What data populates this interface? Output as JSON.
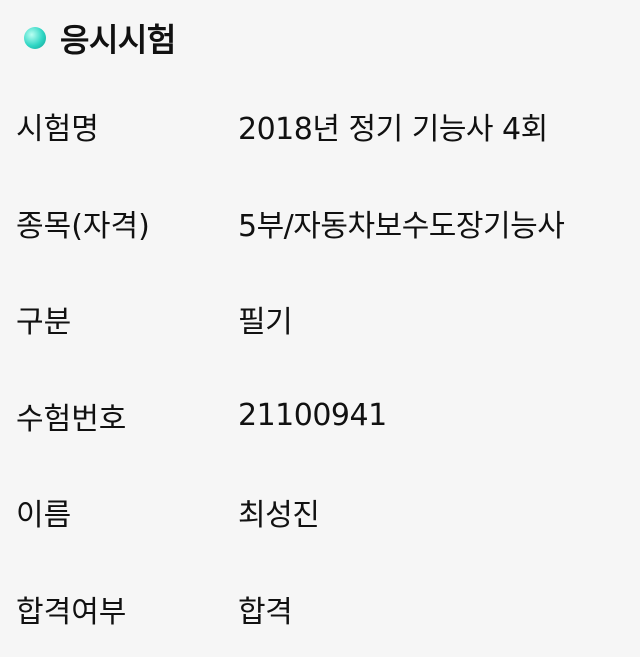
{
  "section": {
    "title": "응시시험",
    "bullet_color": "#2fd6c4"
  },
  "rows": [
    {
      "label": "시험명",
      "value": "2018년 정기 기능사 4회"
    },
    {
      "label": "종목(자격)",
      "value": "5부/자동차보수도장기능사"
    },
    {
      "label": "구분",
      "value": "필기"
    },
    {
      "label": "수험번호",
      "value": "21100941"
    },
    {
      "label": "이름",
      "value": "최성진"
    },
    {
      "label": "합격여부",
      "value": "합격"
    }
  ]
}
